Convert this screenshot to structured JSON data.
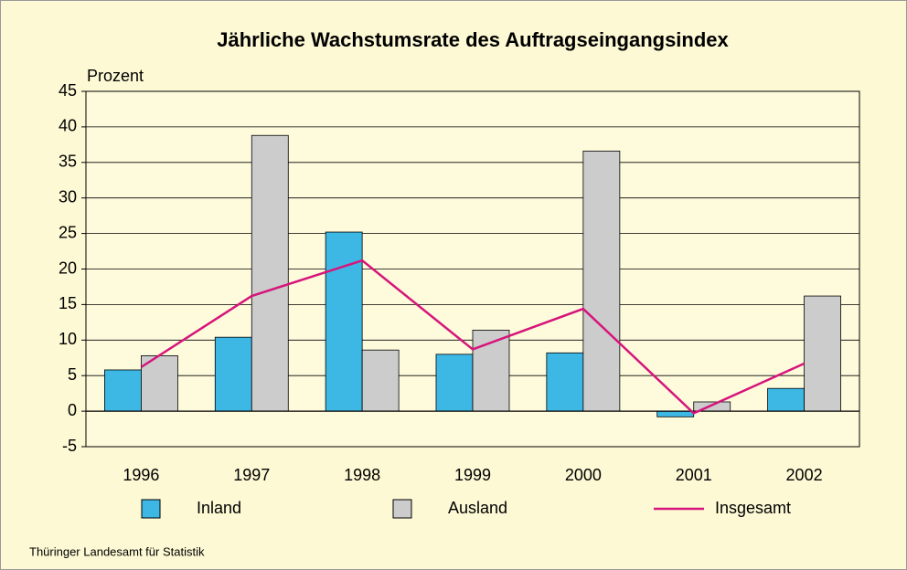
{
  "chart_data": {
    "type": "bar",
    "title": "Jährliche Wachstumsrate des Auftragseingangsindex",
    "y_label": "Prozent",
    "source": "Thüringer Landesamt für Statistik",
    "categories": [
      "1996",
      "1997",
      "1998",
      "1999",
      "2000",
      "2001",
      "2002"
    ],
    "series": [
      {
        "name": "Inland",
        "type": "bar",
        "color": "#3db8e5",
        "values": [
          5.8,
          10.4,
          25.2,
          8.0,
          8.2,
          -0.8,
          3.2
        ]
      },
      {
        "name": "Ausland",
        "type": "bar",
        "color": "#cccccc",
        "values": [
          7.8,
          38.8,
          8.6,
          11.4,
          36.6,
          1.3,
          16.2
        ]
      },
      {
        "name": "Insgesamt",
        "type": "line",
        "color": "#d6157b",
        "values": [
          6.2,
          16.2,
          21.2,
          8.7,
          14.4,
          -0.3,
          6.7
        ]
      }
    ],
    "ylim": [
      -5,
      45
    ],
    "yticks": [
      -5,
      0,
      5,
      10,
      15,
      20,
      25,
      30,
      35,
      40,
      45
    ],
    "grid": true
  }
}
